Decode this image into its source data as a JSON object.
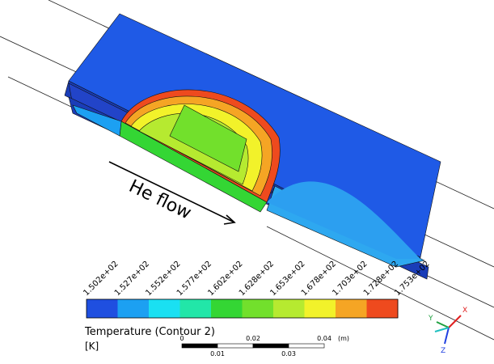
{
  "annotation": "He flow",
  "colorbar": {
    "title": "Temperature (Contour 2)",
    "unit": "[K]",
    "labels": [
      "1.502e+02",
      "1.527e+02",
      "1.552e+02",
      "1.577e+02",
      "1.602e+02",
      "1.628e+02",
      "1.653e+02",
      "1.678e+02",
      "1.703e+02",
      "1.728e+02",
      "1.753e+02"
    ],
    "colors": [
      "#1f4fe0",
      "#1ca0f2",
      "#1ae0f2",
      "#22e6a8",
      "#34d634",
      "#72e02c",
      "#b6ea30",
      "#f2f22a",
      "#f5a524",
      "#ee4a1e"
    ]
  },
  "scale_bar": {
    "top_labels": [
      "0",
      "0.02",
      "0.04"
    ],
    "unit": "(m)",
    "bottom_labels": [
      "0.01",
      "0.03"
    ]
  },
  "axes": {
    "x": "X",
    "y": "Y",
    "z": "Z"
  }
}
